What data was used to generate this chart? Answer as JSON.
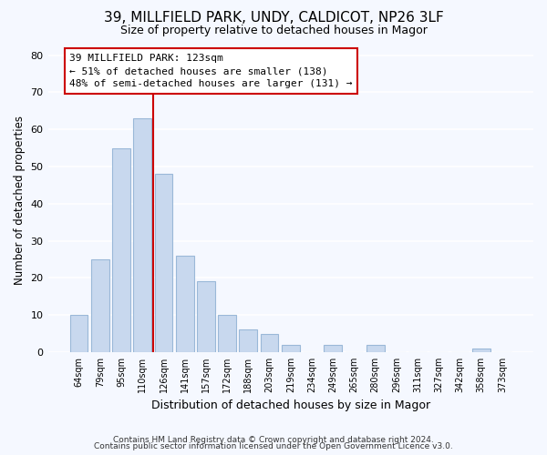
{
  "title": "39, MILLFIELD PARK, UNDY, CALDICOT, NP26 3LF",
  "subtitle": "Size of property relative to detached houses in Magor",
  "xlabel": "Distribution of detached houses by size in Magor",
  "ylabel": "Number of detached properties",
  "bar_labels": [
    "64sqm",
    "79sqm",
    "95sqm",
    "110sqm",
    "126sqm",
    "141sqm",
    "157sqm",
    "172sqm",
    "188sqm",
    "203sqm",
    "219sqm",
    "234sqm",
    "249sqm",
    "265sqm",
    "280sqm",
    "296sqm",
    "311sqm",
    "327sqm",
    "342sqm",
    "358sqm",
    "373sqm"
  ],
  "bar_values": [
    10,
    25,
    55,
    63,
    48,
    26,
    19,
    10,
    6,
    5,
    2,
    0,
    2,
    0,
    2,
    0,
    0,
    0,
    0,
    1,
    0
  ],
  "bar_color": "#c8d8ee",
  "bar_edge_color": "#9ab8d8",
  "vline_x_index": 3.5,
  "annotation_text_line1": "39 MILLFIELD PARK: 123sqm",
  "annotation_text_line2": "← 51% of detached houses are smaller (138)",
  "annotation_text_line3": "48% of semi-detached houses are larger (131) →",
  "vline_color": "#cc0000",
  "annotation_box_facecolor": "#ffffff",
  "annotation_box_edgecolor": "#cc0000",
  "ylim": [
    0,
    82
  ],
  "yticks": [
    0,
    10,
    20,
    30,
    40,
    50,
    60,
    70,
    80
  ],
  "footer_line1": "Contains HM Land Registry data © Crown copyright and database right 2024.",
  "footer_line2": "Contains public sector information licensed under the Open Government Licence v3.0.",
  "plot_bg_color": "#f5f8ff",
  "fig_bg_color": "#f5f8ff",
  "grid_color": "#ffffff"
}
